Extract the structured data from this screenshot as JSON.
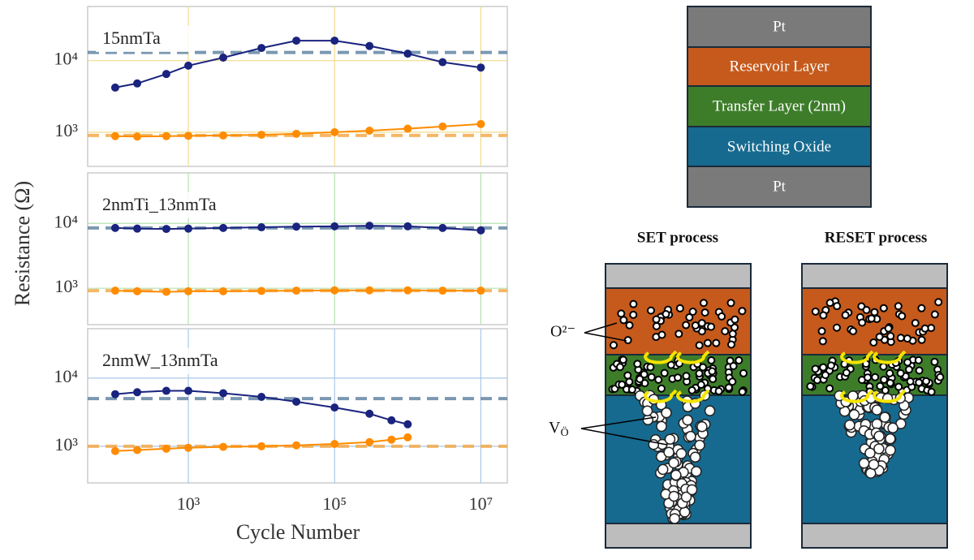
{
  "chart_data": [
    {
      "type": "scatter",
      "title": "15nmTa",
      "xscale": "log",
      "yscale": "log",
      "xlim": [
        42,
        23000000
      ],
      "ylim": [
        333,
        57000
      ],
      "xticks": [
        {
          "value": 1000,
          "label": "10³"
        },
        {
          "value": 100000,
          "label": "10⁵"
        },
        {
          "value": 10000000,
          "label": "10⁷"
        }
      ],
      "yticks": [
        {
          "value": 1000,
          "label": "10³"
        },
        {
          "value": 10000,
          "label": "10⁴"
        }
      ],
      "grid": true,
      "grid_color": "#f0dc8c",
      "series": [
        {
          "color": "#1a237e",
          "x": [
            100,
            200,
            500,
            1000,
            3000,
            10000,
            30000,
            100000,
            300000,
            1000000,
            3000000,
            10000000
          ],
          "values": [
            4200,
            4800,
            6500,
            8500,
            11000,
            15000,
            19000,
            19000,
            16000,
            12500,
            9500,
            8000
          ],
          "mean": 13000
        },
        {
          "color": "#ff8c00",
          "x": [
            100,
            200,
            500,
            1000,
            3000,
            10000,
            30000,
            100000,
            300000,
            1000000,
            3000000,
            10000000
          ],
          "values": [
            880,
            870,
            880,
            890,
            900,
            920,
            950,
            1000,
            1050,
            1120,
            1200,
            1300
          ],
          "mean": 900
        }
      ]
    },
    {
      "type": "scatter",
      "title": "2nmTi_13nmTa",
      "ylabel": "Resistance (Ω)",
      "xscale": "log",
      "yscale": "log",
      "xlim": [
        42,
        23000000
      ],
      "ylim": [
        275,
        60000
      ],
      "xticks": [
        {
          "value": 1000,
          "label": "10³"
        },
        {
          "value": 100000,
          "label": "10⁵"
        },
        {
          "value": 10000000,
          "label": "10⁷"
        }
      ],
      "yticks": [
        {
          "value": 1000,
          "label": "10³"
        },
        {
          "value": 10000,
          "label": "10⁴"
        }
      ],
      "grid": true,
      "grid_color": "#b5e0b0",
      "series": [
        {
          "color": "#1a237e",
          "x": [
            100,
            200,
            500,
            1000,
            3000,
            10000,
            30000,
            100000,
            300000,
            1000000,
            3000000,
            10000000
          ],
          "values": [
            8500,
            8300,
            8200,
            8300,
            8500,
            8700,
            8900,
            9000,
            9200,
            9000,
            8500,
            7800
          ],
          "mean": 8500
        },
        {
          "color": "#ff8c00",
          "x": [
            100,
            200,
            500,
            1000,
            3000,
            10000,
            30000,
            100000,
            300000,
            1000000,
            3000000,
            10000000
          ],
          "values": [
            920,
            900,
            880,
            900,
            900,
            910,
            920,
            930,
            930,
            930,
            920,
            920
          ],
          "mean": 920
        }
      ]
    },
    {
      "type": "scatter",
      "title": "2nmW_13nmTa",
      "xlabel": "Cycle Number",
      "xscale": "log",
      "yscale": "log",
      "xlim": [
        42,
        23000000
      ],
      "ylim": [
        290,
        53000
      ],
      "xticks": [
        {
          "value": 1000,
          "label": "10³"
        },
        {
          "value": 100000,
          "label": "10⁵"
        },
        {
          "value": 10000000,
          "label": "10⁷"
        }
      ],
      "yticks": [
        {
          "value": 1000,
          "label": "10³"
        },
        {
          "value": 10000,
          "label": "10⁴"
        }
      ],
      "grid": true,
      "grid_color": "#aac8e8",
      "series": [
        {
          "color": "#1a237e",
          "x": [
            100,
            200,
            500,
            1000,
            3000,
            10000,
            30000,
            100000,
            300000,
            600000,
            1000000
          ],
          "values": [
            5800,
            6200,
            6500,
            6500,
            6000,
            5300,
            4500,
            3700,
            3000,
            2400,
            2100
          ],
          "mean": 5000
        },
        {
          "color": "#ff8c00",
          "x": [
            100,
            200,
            500,
            1000,
            3000,
            10000,
            30000,
            100000,
            300000,
            600000,
            1000000
          ],
          "values": [
            850,
            880,
            920,
            950,
            980,
            1000,
            1030,
            1080,
            1150,
            1250,
            1350
          ],
          "mean": 1000
        }
      ]
    }
  ],
  "diagram": {
    "stack": [
      "Pt",
      "Reservoir Layer",
      "Transfer Layer (2nm)",
      "Switching Oxide",
      "Pt"
    ],
    "set_title": "SET process",
    "reset_title": "RESET process",
    "oxygen_label": "O²⁻",
    "vacancy_label": "V",
    "vacancy_sub": "Ö"
  }
}
